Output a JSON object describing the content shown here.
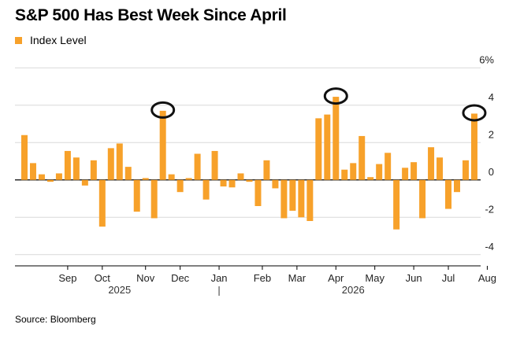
{
  "title": "S&P 500 Has Best Week Since April",
  "legend": {
    "label": "Index Level",
    "color": "#f7a12a"
  },
  "source": "Source: Bloomberg",
  "chart_data": {
    "type": "bar",
    "series": [
      {
        "name": "Index Level",
        "values": [
          2.4,
          0.9,
          0.3,
          -0.1,
          0.35,
          1.55,
          1.2,
          -0.3,
          1.05,
          -2.5,
          1.7,
          1.95,
          0.7,
          -1.7,
          0.1,
          -2.05,
          3.7,
          0.3,
          -0.65,
          0.1,
          1.4,
          -1.05,
          1.55,
          -0.35,
          -0.4,
          0.35,
          -0.1,
          -1.4,
          1.05,
          -0.45,
          -2.05,
          -1.65,
          -2.0,
          -2.2,
          3.3,
          3.5,
          4.45,
          0.55,
          0.9,
          2.35,
          0.15,
          0.85,
          1.45,
          -2.65,
          0.65,
          0.95,
          -2.05,
          1.75,
          1.2,
          -1.55,
          -0.65,
          1.05,
          3.55
        ]
      }
    ],
    "ylim": [
      -4.6,
      6.6
    ],
    "yticks": [
      {
        "value": 6,
        "label": "6%"
      },
      {
        "value": 4,
        "label": "4"
      },
      {
        "value": 2,
        "label": "2"
      },
      {
        "value": 0,
        "label": "0"
      },
      {
        "value": -2,
        "label": "-2"
      },
      {
        "value": -4,
        "label": "-4"
      }
    ],
    "month_ticks": [
      {
        "index": 5,
        "label": "Sep"
      },
      {
        "index": 9,
        "label": "Oct"
      },
      {
        "index": 14,
        "label": "Nov"
      },
      {
        "index": 18,
        "label": "Dec"
      },
      {
        "index": 22.5,
        "label": "Jan"
      },
      {
        "index": 27.5,
        "label": "Feb"
      },
      {
        "index": 31.5,
        "label": "Mar"
      },
      {
        "index": 36,
        "label": "Apr"
      },
      {
        "index": 40.5,
        "label": "May"
      },
      {
        "index": 45,
        "label": "Jun"
      },
      {
        "index": 49,
        "label": "Jul"
      },
      {
        "index": 53.5,
        "label": "Aug"
      }
    ],
    "year_labels": [
      {
        "index": 11,
        "label": "2025"
      },
      {
        "index": 38,
        "label": "2026"
      }
    ],
    "year_divider_index": 22.5,
    "highlighted_indices": [
      16,
      36,
      52
    ],
    "grid": true
  }
}
